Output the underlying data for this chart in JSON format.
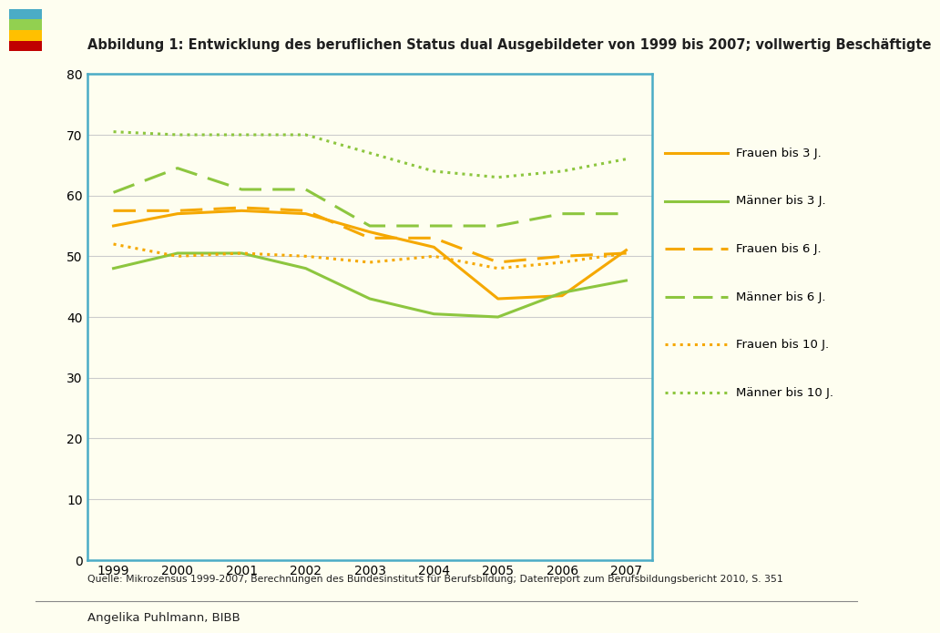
{
  "title": "Abbildung 1: Entwicklung des beruflichen Status dual Ausgebildeter von 1999 bis 2007; vollwertig Beschäftigte",
  "years": [
    1999,
    2000,
    2001,
    2002,
    2003,
    2004,
    2005,
    2006,
    2007
  ],
  "series": {
    "frauen_3j": [
      55,
      57,
      57.5,
      57,
      54,
      51.5,
      43,
      43.5,
      51
    ],
    "maenner_3j": [
      48,
      50.5,
      50.5,
      48,
      43,
      40.5,
      40,
      44,
      46
    ],
    "frauen_6j": [
      57.5,
      57.5,
      58,
      57.5,
      53,
      53,
      49,
      50,
      50.5
    ],
    "maenner_6j": [
      60.5,
      64.5,
      61,
      61,
      55,
      55,
      55,
      57,
      57
    ],
    "frauen_10j": [
      52,
      50,
      50.5,
      50,
      49,
      50,
      48,
      49,
      50.5
    ],
    "maenner_10j": [
      70.5,
      70,
      70,
      70,
      67,
      64,
      63,
      64,
      66
    ]
  },
  "colors": {
    "frauen": "#F5A800",
    "maenner": "#8DC63F"
  },
  "ylim": [
    0,
    80
  ],
  "yticks": [
    0,
    10,
    20,
    30,
    40,
    50,
    60,
    70,
    80
  ],
  "source_text": "Quelle: Mikrozensus 1999-2007, Berechnungen des Bundesinstituts für Berufsbildung; Datenreport zum Berufsbildungsbericht 2010, S. 351",
  "footer_left": "Angelika Puhlmann, BIBB",
  "plot_bg": "#FEFEF0",
  "fig_bg": "#FEFEF0",
  "border_color": "#4BACC6",
  "grid_color": "#CCCCCC",
  "logo_colors": [
    "#4BACC6",
    "#92D050",
    "#FFC000",
    "#C00000"
  ],
  "legend_entries": [
    {
      "label": "Frauen bis 3 J.",
      "color": "#F5A800",
      "ls": "solid"
    },
    {
      "label": "Männer bis 3 J.",
      "color": "#8DC63F",
      "ls": "solid"
    },
    {
      "label": "Frauen bis 6 J.",
      "color": "#F5A800",
      "ls": "dashed"
    },
    {
      "label": "Männer bis 6 J.",
      "color": "#8DC63F",
      "ls": "dashed"
    },
    {
      "label": "Frauen bis 10 J.",
      "color": "#F5A800",
      "ls": "dotted"
    },
    {
      "label": "Männer bis 10 J.",
      "color": "#8DC63F",
      "ls": "dotted"
    }
  ]
}
